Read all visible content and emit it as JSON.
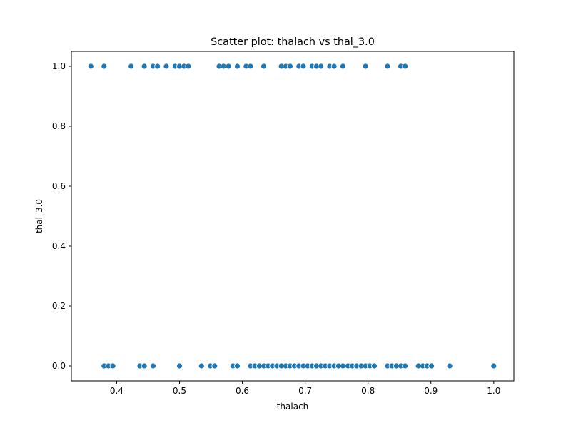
{
  "chart_data": {
    "type": "scatter",
    "title": "Scatter plot: thalach vs thal_3.0",
    "xlabel": "thalach",
    "ylabel": "thal_3.0",
    "xlim": [
      0.328,
      1.032
    ],
    "ylim": [
      -0.05,
      1.05
    ],
    "xticks": [
      0.4,
      0.5,
      0.6,
      0.7,
      0.8,
      0.9,
      1.0
    ],
    "xtick_labels": [
      "0.4",
      "0.5",
      "0.6",
      "0.7",
      "0.8",
      "0.9",
      "1.0"
    ],
    "yticks": [
      0.0,
      0.2,
      0.4,
      0.6,
      0.8,
      1.0
    ],
    "ytick_labels": [
      "0.0",
      "0.2",
      "0.4",
      "0.6",
      "0.8",
      "1.0"
    ],
    "grid": false,
    "legend": "none",
    "marker_color": "#1f77b4",
    "series": [
      {
        "x": [
          0.359,
          0.38,
          0.423,
          0.444,
          0.458,
          0.465,
          0.479,
          0.493,
          0.5,
          0.507,
          0.514,
          0.563,
          0.57,
          0.578,
          0.592,
          0.606,
          0.613,
          0.634,
          0.662,
          0.669,
          0.676,
          0.69,
          0.697,
          0.711,
          0.718,
          0.725,
          0.739,
          0.746,
          0.76,
          0.796,
          0.831,
          0.852,
          0.859,
          0.38,
          0.387,
          0.394,
          0.437,
          0.444,
          0.458,
          0.5,
          0.535,
          0.549,
          0.556,
          0.585,
          0.592,
          0.613,
          0.62,
          0.627,
          0.634,
          0.641,
          0.648,
          0.655,
          0.662,
          0.669,
          0.676,
          0.683,
          0.69,
          0.697,
          0.704,
          0.711,
          0.718,
          0.725,
          0.732,
          0.739,
          0.746,
          0.753,
          0.76,
          0.768,
          0.775,
          0.782,
          0.789,
          0.796,
          0.803,
          0.81,
          0.831,
          0.838,
          0.845,
          0.852,
          0.859,
          0.88,
          0.887,
          0.894,
          0.901,
          0.93,
          1.0
        ],
        "y": [
          1,
          1,
          1,
          1,
          1,
          1,
          1,
          1,
          1,
          1,
          1,
          1,
          1,
          1,
          1,
          1,
          1,
          1,
          1,
          1,
          1,
          1,
          1,
          1,
          1,
          1,
          1,
          1,
          1,
          1,
          1,
          1,
          1,
          0,
          0,
          0,
          0,
          0,
          0,
          0,
          0,
          0,
          0,
          0,
          0,
          0,
          0,
          0,
          0,
          0,
          0,
          0,
          0,
          0,
          0,
          0,
          0,
          0,
          0,
          0,
          0,
          0,
          0,
          0,
          0,
          0,
          0,
          0,
          0,
          0,
          0,
          0,
          0,
          0,
          0,
          0,
          0,
          0,
          0,
          0,
          0,
          0,
          0,
          0,
          0
        ]
      }
    ]
  }
}
